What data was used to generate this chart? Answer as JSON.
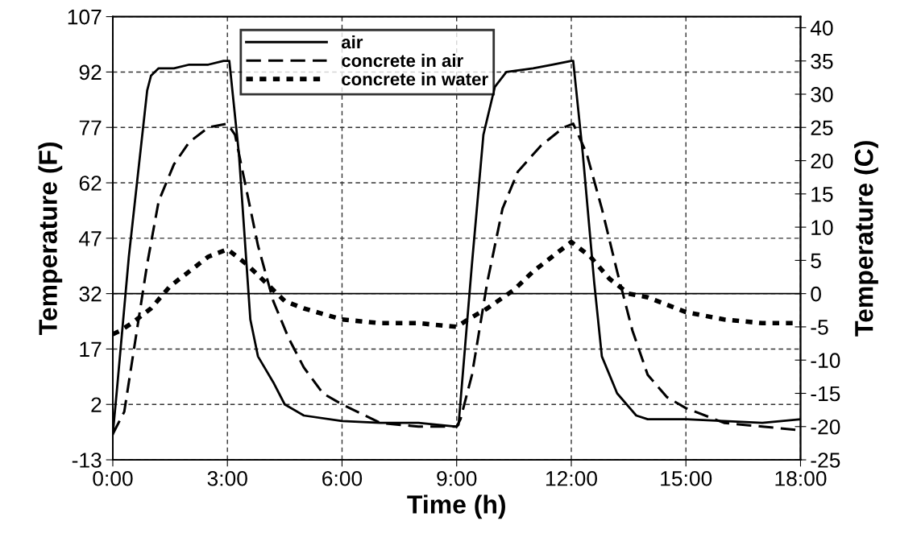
{
  "chart_data": {
    "type": "line",
    "xlabel": "Time (h)",
    "ylabel": "Temperature (F)",
    "y2label": "Temperature (C)",
    "xlim": [
      0,
      18
    ],
    "xticks": [
      {
        "value": 0,
        "label": "0:00"
      },
      {
        "value": 3,
        "label": "3:00"
      },
      {
        "value": 6,
        "label": "6:00"
      },
      {
        "value": 9,
        "label": "9:00"
      },
      {
        "value": 12,
        "label": "12:00"
      },
      {
        "value": 15,
        "label": "15:00"
      },
      {
        "value": 18,
        "label": "18:00"
      }
    ],
    "ylim": [
      -13,
      107
    ],
    "yticks": [
      -13,
      2,
      17,
      32,
      47,
      62,
      77,
      92,
      107
    ],
    "y2lim": [
      -25,
      41.67
    ],
    "y2ticks": [
      -25,
      -20,
      -15,
      -10,
      -5,
      0,
      5,
      10,
      15,
      20,
      25,
      30,
      35,
      40
    ],
    "grid": true,
    "legend": "top",
    "ref_lines": [
      {
        "axis": "y",
        "value": 32,
        "color": "#000000",
        "line_style": "solid"
      }
    ],
    "series": [
      {
        "name": "air",
        "color": "#000000",
        "line_style": "solid",
        "x": [
          0,
          0.1,
          0.42,
          0.9,
          1.0,
          1.2,
          1.6,
          2.0,
          2.5,
          2.9,
          3.05,
          3.3,
          3.5,
          3.6,
          3.8,
          4.2,
          4.5,
          5,
          6,
          7,
          8,
          9,
          9.05,
          9.4,
          9.7,
          10,
          10.3,
          11,
          11.5,
          12,
          12.05,
          12.3,
          12.6,
          12.8,
          13.2,
          13.7,
          14,
          15,
          16,
          17,
          18
        ],
        "values": [
          -6,
          5,
          42,
          87,
          91,
          93,
          93,
          94,
          94,
          95,
          95,
          70,
          40,
          25,
          15,
          8,
          2,
          -1,
          -2.5,
          -3,
          -3,
          -4,
          -3.5,
          40,
          75,
          88,
          92,
          93,
          94,
          95,
          95,
          70,
          35,
          15,
          5,
          -1,
          -2,
          -2,
          -2.5,
          -3,
          -2
        ]
      },
      {
        "name": "concrete in air",
        "color": "#000000",
        "line_style": "dashed",
        "x": [
          0,
          0.3,
          0.6,
          0.9,
          1.2,
          1.6,
          2,
          2.5,
          3,
          3.2,
          3.5,
          3.8,
          4.2,
          4.6,
          5,
          5.5,
          6,
          7,
          8,
          9,
          9.1,
          9.4,
          9.8,
          10.2,
          10.6,
          11.2,
          11.8,
          12.05,
          12.4,
          12.8,
          13.2,
          13.6,
          14,
          14.5,
          15,
          16,
          17,
          18
        ],
        "values": [
          -6,
          0,
          20,
          40,
          57,
          67,
          73,
          77,
          78,
          75,
          60,
          45,
          30,
          20,
          12,
          5,
          2,
          -3,
          -4,
          -4,
          -2,
          10,
          35,
          55,
          65,
          72,
          77,
          78,
          70,
          55,
          38,
          22,
          10,
          4,
          1,
          -3,
          -4,
          -5
        ]
      },
      {
        "name": "concrete in water",
        "color": "#000000",
        "line_style": "dotted",
        "x": [
          0,
          0.2,
          0.5,
          1,
          1.5,
          2,
          2.5,
          3,
          3.5,
          4,
          4.5,
          5,
          6,
          7,
          8,
          9,
          9.3,
          9.8,
          10.5,
          11,
          11.5,
          12,
          12.5,
          13,
          13.5,
          14,
          15,
          16,
          17,
          18
        ],
        "values": [
          21,
          22,
          24,
          28,
          34,
          38,
          42,
          44,
          40,
          35,
          30,
          28,
          25,
          24,
          24,
          23,
          25,
          28,
          33,
          38,
          42,
          46,
          42,
          36,
          32,
          31,
          27,
          25,
          24,
          24
        ]
      }
    ]
  }
}
